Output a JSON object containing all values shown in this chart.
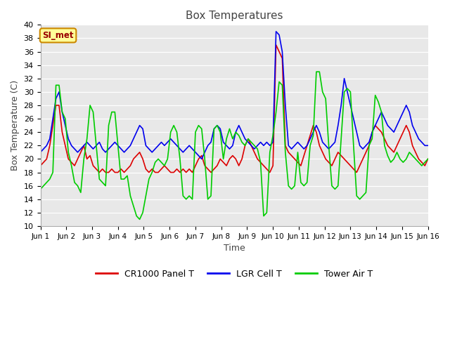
{
  "title": "Box Temperatures",
  "xlabel": "Time",
  "ylabel": "Box Temperature (C)",
  "ylim": [
    10,
    40
  ],
  "background_color": "#e8e8e8",
  "plot_bg_color": "#ffffff",
  "axes_bg_color": "#e8e8e8",
  "grid_color": "#ffffff",
  "annotation_text": "SI_met",
  "annotation_bg": "#ffff99",
  "annotation_border": "#cc8800",
  "annotation_text_color": "#990000",
  "legend_entries": [
    "CR1000 Panel T",
    "LGR Cell T",
    "Tower Air T"
  ],
  "line_colors": [
    "#dd0000",
    "#0000ee",
    "#00cc00"
  ],
  "line_width": 1.2,
  "cr1000": [
    19.0,
    19.5,
    20.0,
    22.0,
    25.0,
    28.0,
    28.0,
    24.0,
    22.0,
    20.0,
    19.5,
    19.0,
    20.0,
    21.0,
    22.0,
    20.0,
    20.5,
    19.0,
    18.5,
    18.0,
    18.5,
    18.0,
    18.0,
    18.5,
    18.0,
    18.0,
    18.5,
    18.0,
    18.5,
    19.0,
    20.0,
    20.5,
    21.0,
    20.0,
    18.5,
    18.0,
    18.5,
    18.0,
    18.0,
    18.5,
    19.0,
    18.5,
    18.0,
    18.0,
    18.5,
    18.0,
    18.5,
    18.0,
    18.5,
    18.0,
    19.0,
    20.0,
    20.5,
    19.0,
    18.5,
    18.0,
    18.5,
    19.0,
    20.0,
    19.5,
    19.0,
    20.0,
    20.5,
    20.0,
    19.0,
    20.0,
    22.0,
    23.0,
    22.0,
    21.0,
    20.0,
    19.5,
    19.0,
    18.5,
    18.0,
    19.0,
    37.0,
    36.0,
    35.0,
    22.0,
    21.0,
    20.5,
    20.0,
    19.5,
    19.0,
    20.5,
    22.0,
    23.5,
    25.0,
    24.0,
    22.0,
    21.0,
    20.0,
    19.5,
    19.0,
    20.0,
    21.0,
    20.5,
    20.0,
    19.5,
    19.0,
    18.5,
    18.0,
    19.0,
    20.0,
    21.0,
    22.0,
    24.0,
    25.0,
    24.5,
    24.0,
    23.0,
    22.0,
    21.5,
    21.0,
    22.0,
    23.0,
    24.0,
    25.0,
    24.0,
    22.0,
    21.0,
    20.0,
    19.5,
    19.0,
    20.0
  ],
  "lgr_cell": [
    21.0,
    21.5,
    22.0,
    23.0,
    26.0,
    29.0,
    30.0,
    27.0,
    25.0,
    23.0,
    22.0,
    21.5,
    21.0,
    21.5,
    22.0,
    22.5,
    22.0,
    21.5,
    22.0,
    22.5,
    21.5,
    21.0,
    21.5,
    22.0,
    22.5,
    22.0,
    21.5,
    21.0,
    21.5,
    22.0,
    23.0,
    24.0,
    25.0,
    24.5,
    22.0,
    21.5,
    21.0,
    21.5,
    22.0,
    22.5,
    22.0,
    22.5,
    23.0,
    22.5,
    22.0,
    21.5,
    21.0,
    21.5,
    22.0,
    21.5,
    21.0,
    20.5,
    20.0,
    21.0,
    22.0,
    22.5,
    24.5,
    25.0,
    24.5,
    22.5,
    22.0,
    21.5,
    22.0,
    24.0,
    25.0,
    24.0,
    23.0,
    22.5,
    22.0,
    21.5,
    22.0,
    22.5,
    22.0,
    22.5,
    22.0,
    22.5,
    39.0,
    38.5,
    36.0,
    28.0,
    22.0,
    21.5,
    22.0,
    22.5,
    22.0,
    21.5,
    22.0,
    23.0,
    24.0,
    25.0,
    24.0,
    22.5,
    22.0,
    21.5,
    22.0,
    22.5,
    25.0,
    28.0,
    32.0,
    30.0,
    28.0,
    26.0,
    24.0,
    22.0,
    21.5,
    22.0,
    22.5,
    24.0,
    25.0,
    26.0,
    27.0,
    26.0,
    25.0,
    24.5,
    24.0,
    25.0,
    26.0,
    27.0,
    28.0,
    27.0,
    25.0,
    24.0,
    23.0,
    22.5,
    22.0,
    22.0
  ],
  "tower_air": [
    15.5,
    16.0,
    16.5,
    17.0,
    18.0,
    31.0,
    31.0,
    27.0,
    26.0,
    21.0,
    19.0,
    16.5,
    16.0,
    15.0,
    20.0,
    23.0,
    28.0,
    27.0,
    22.0,
    17.0,
    16.5,
    16.0,
    25.0,
    27.0,
    27.0,
    22.0,
    17.0,
    17.0,
    17.5,
    14.5,
    13.0,
    11.5,
    11.0,
    12.0,
    14.5,
    17.0,
    18.0,
    19.5,
    20.0,
    19.5,
    19.0,
    20.0,
    24.0,
    25.0,
    24.0,
    20.0,
    14.5,
    14.0,
    14.5,
    14.0,
    24.0,
    25.0,
    24.5,
    20.0,
    14.0,
    14.5,
    24.5,
    25.0,
    24.0,
    20.0,
    23.0,
    24.5,
    23.0,
    24.0,
    23.5,
    22.5,
    22.0,
    23.0,
    22.5,
    22.0,
    21.5,
    19.5,
    11.5,
    12.0,
    21.0,
    23.5,
    27.0,
    31.5,
    31.0,
    21.0,
    16.0,
    15.5,
    16.0,
    21.0,
    16.5,
    16.0,
    16.5,
    22.0,
    23.5,
    33.0,
    33.0,
    30.0,
    29.0,
    22.0,
    16.0,
    15.5,
    16.0,
    23.0,
    30.0,
    30.5,
    30.0,
    22.0,
    14.5,
    14.0,
    14.5,
    15.0,
    22.0,
    23.0,
    29.5,
    28.5,
    27.0,
    22.0,
    20.5,
    19.5,
    20.0,
    21.0,
    20.0,
    19.5,
    20.0,
    21.0,
    20.5,
    20.0,
    19.5,
    19.0,
    19.5,
    20.0
  ]
}
